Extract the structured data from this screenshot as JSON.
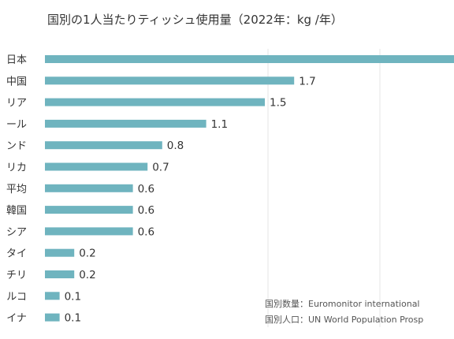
{
  "chart_data": {
    "type": "bar",
    "orientation": "horizontal",
    "title": "国別の1人当たりティッシュ使用量（2022年：kg /年）",
    "categories": [
      "日本",
      "中国",
      "リア",
      "ール",
      "ンド",
      "リカ",
      "平均",
      "韓国",
      "シア",
      "タイ",
      "チリ",
      "ルコ",
      "イナ"
    ],
    "values": [
      null,
      1.7,
      1.5,
      1.1,
      0.8,
      0.7,
      0.6,
      0.6,
      0.6,
      0.2,
      0.2,
      0.1,
      0.1
    ],
    "value_labels": [
      "",
      "1.7",
      "1.5",
      "1.1",
      "0.8",
      "0.7",
      "0.6",
      "0.6",
      "0.6",
      "0.2",
      "0.2",
      "0.1",
      "0.1"
    ],
    "xlim": [
      0,
      3.0
    ],
    "grid": true,
    "bar_color": "#6fb4bf",
    "notes": [
      "国別数量：Euromonitor international",
      "国別人口：UN World Population Prosp"
    ]
  }
}
